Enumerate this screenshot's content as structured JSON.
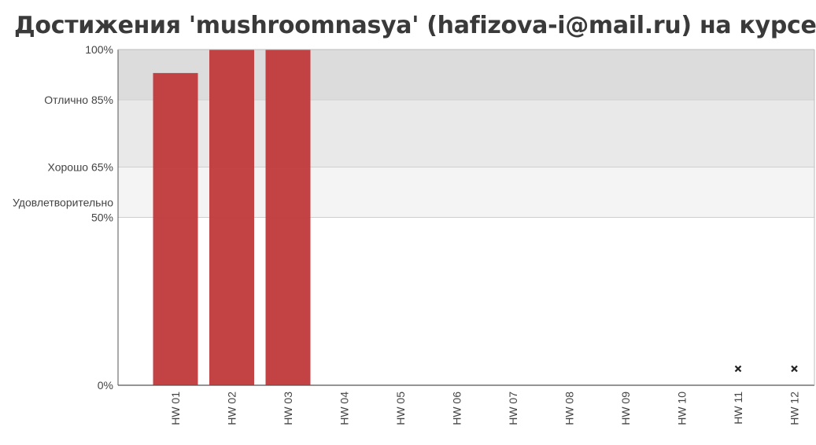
{
  "header": {
    "title": "Достижения 'mushroomnasya' (hafizova-i@mail.ru) на курсе"
  },
  "colors": {
    "bar": "#c0393b",
    "band_excellent": "#dcdcdc",
    "band_good": "#e9e9e9",
    "band_satisfactory": "#f4f4f4",
    "axis": "#555555",
    "marker": "#222222"
  },
  "chart_data": {
    "type": "bar",
    "ylim": [
      0,
      100
    ],
    "yticks": [
      {
        "value": 100,
        "lines": [
          "100%"
        ]
      },
      {
        "value": 85,
        "lines": [
          "Отлично 85%"
        ]
      },
      {
        "value": 65,
        "lines": [
          "Хорошо 65%"
        ]
      },
      {
        "value": 50,
        "lines": [
          "Удовлетворительно",
          "50%"
        ]
      },
      {
        "value": 0,
        "lines": [
          "0%"
        ]
      }
    ],
    "bands": [
      {
        "from": 85,
        "to": 100,
        "color": "#dcdcdc"
      },
      {
        "from": 65,
        "to": 85,
        "color": "#e9e9e9"
      },
      {
        "from": 50,
        "to": 65,
        "color": "#f4f4f4"
      }
    ],
    "categories": [
      "HW 01",
      "HW 02",
      "HW 03",
      "HW 04",
      "HW 05",
      "HW 06",
      "HW 07",
      "HW 08",
      "HW 09",
      "HW 10",
      "HW 11",
      "HW 12"
    ],
    "values": [
      93,
      100,
      100,
      0,
      0,
      0,
      0,
      0,
      0,
      0,
      null,
      null
    ],
    "missing_markers": [
      "HW 11",
      "HW 12"
    ]
  }
}
